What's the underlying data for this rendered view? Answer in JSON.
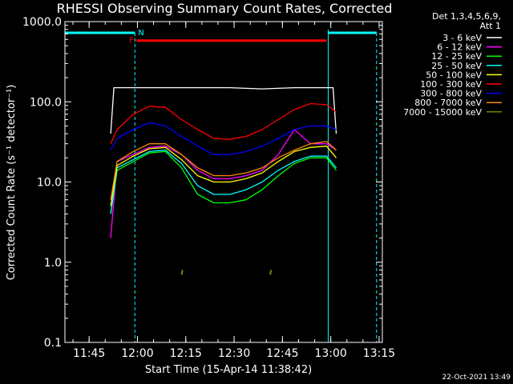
{
  "chart_data": {
    "type": "line",
    "title": "RHESSI Observing Summary Count Rates, Corrected",
    "xlabel": "Start Time (15-Apr-14 11:38:42)",
    "ylabel": "Corrected Count Rate (s⁻¹ detector⁻¹)",
    "yscale": "log",
    "ylim": [
      0.1,
      1000
    ],
    "xlim_minutes_after_start": [
      -1.2,
      97.3
    ],
    "x_ticks": [
      "11:45",
      "12:00",
      "12:15",
      "12:30",
      "12:45",
      "13:00",
      "13:15"
    ],
    "x_ticks_minutes": [
      6.3,
      21.3,
      36.3,
      51.3,
      66.3,
      81.3,
      96.3
    ],
    "y_ticks": [
      "0.1",
      "1.0",
      "10.0",
      "100.0",
      "1000.0"
    ],
    "y_ticks_values": [
      0.1,
      1,
      10,
      100,
      1000
    ],
    "legend": {
      "header": [
        "Det 1,3,4,5,6,9,",
        "Att 1"
      ],
      "position": "right, outside plot"
    },
    "x_unit": "minutes after 11:38:42",
    "series": [
      {
        "name": "3 - 6 keV",
        "color": "#ffffff",
        "x": [
          13,
          14,
          20,
          30,
          40,
          50,
          60,
          70,
          80,
          82,
          83
        ],
        "values": [
          40,
          150,
          150,
          150,
          150,
          150,
          145,
          150,
          150,
          150,
          40
        ]
      },
      {
        "name": "6 - 12 keV",
        "color": "#ff00ff",
        "x": [
          13,
          15,
          20,
          25,
          30,
          35,
          40,
          45,
          50,
          55,
          60,
          65,
          70,
          75,
          80,
          83
        ],
        "values": [
          2,
          18,
          22,
          27,
          28,
          22,
          14,
          11,
          11,
          12,
          14,
          22,
          45,
          30,
          30,
          25
        ]
      },
      {
        "name": "12 - 25 keV",
        "color": "#00ff00",
        "x": [
          13,
          15,
          20,
          25,
          30,
          35,
          40,
          45,
          50,
          55,
          60,
          65,
          70,
          75,
          80,
          83
        ],
        "values": [
          4,
          14,
          18,
          23,
          24,
          15,
          7,
          5.5,
          5.5,
          6,
          8,
          12,
          17,
          20,
          20,
          14
        ]
      },
      {
        "name": "25 - 50 keV",
        "color": "#00ffff",
        "x": [
          13,
          15,
          20,
          25,
          30,
          35,
          40,
          45,
          50,
          55,
          60,
          65,
          70,
          75,
          80,
          83
        ],
        "values": [
          4,
          15,
          19,
          24,
          25,
          17,
          9,
          7,
          7,
          8,
          10,
          14,
          18,
          21,
          21,
          15
        ]
      },
      {
        "name": "50 - 100 keV",
        "color": "#ffff00",
        "x": [
          13,
          15,
          20,
          25,
          30,
          35,
          40,
          45,
          50,
          55,
          60,
          65,
          70,
          75,
          80,
          83
        ],
        "values": [
          5,
          16,
          21,
          26,
          27,
          19,
          12,
          10,
          10,
          11,
          13,
          18,
          24,
          27,
          28,
          20
        ]
      },
      {
        "name": "100 - 300 keV",
        "color": "#ff0000",
        "x": [
          13,
          15,
          20,
          25,
          30,
          35,
          40,
          45,
          50,
          55,
          60,
          65,
          70,
          75,
          80,
          83
        ],
        "values": [
          30,
          45,
          70,
          88,
          85,
          60,
          45,
          35,
          34,
          37,
          45,
          60,
          80,
          95,
          92,
          75
        ]
      },
      {
        "name": "300 - 800 keV",
        "color": "#0000ff",
        "x": [
          13,
          15,
          20,
          25,
          30,
          35,
          40,
          45,
          50,
          55,
          60,
          65,
          70,
          75,
          80,
          83
        ],
        "values": [
          25,
          35,
          45,
          55,
          50,
          37,
          28,
          22,
          22,
          24,
          28,
          35,
          45,
          50,
          50,
          45
        ]
      },
      {
        "name": "800 - 7000 keV",
        "color": "#ff8800",
        "x": [
          13,
          15,
          20,
          25,
          30,
          35,
          40,
          45,
          50,
          55,
          60,
          65,
          70,
          75,
          80,
          83
        ],
        "values": [
          6,
          18,
          24,
          30,
          30,
          22,
          15,
          12,
          12,
          13,
          15,
          20,
          25,
          30,
          32,
          25
        ]
      },
      {
        "name": "7000 - 15000 keV",
        "color": "#808000",
        "x": [
          35,
          35.3,
          62.5,
          62.8
        ],
        "values": [
          0.7,
          0.8,
          0.7,
          0.8
        ]
      }
    ],
    "annotations": {
      "flags": [
        {
          "label": "F",
          "color": "#ff0000",
          "x_start": 21,
          "x_end": 80,
          "y": 580
        },
        {
          "label": "N",
          "color": "#00ffff",
          "x": 21
        }
      ],
      "cyan_bars": [
        [
          -1.2,
          20.5
        ],
        [
          80.5,
          95.5
        ]
      ],
      "vertical_lines_solid": [
        -1.2,
        80.5
      ],
      "vertical_lines_dashed": [
        20.5,
        95.5
      ]
    }
  },
  "footer": {
    "date_stamp": "22-Oct-2021 13:49"
  }
}
